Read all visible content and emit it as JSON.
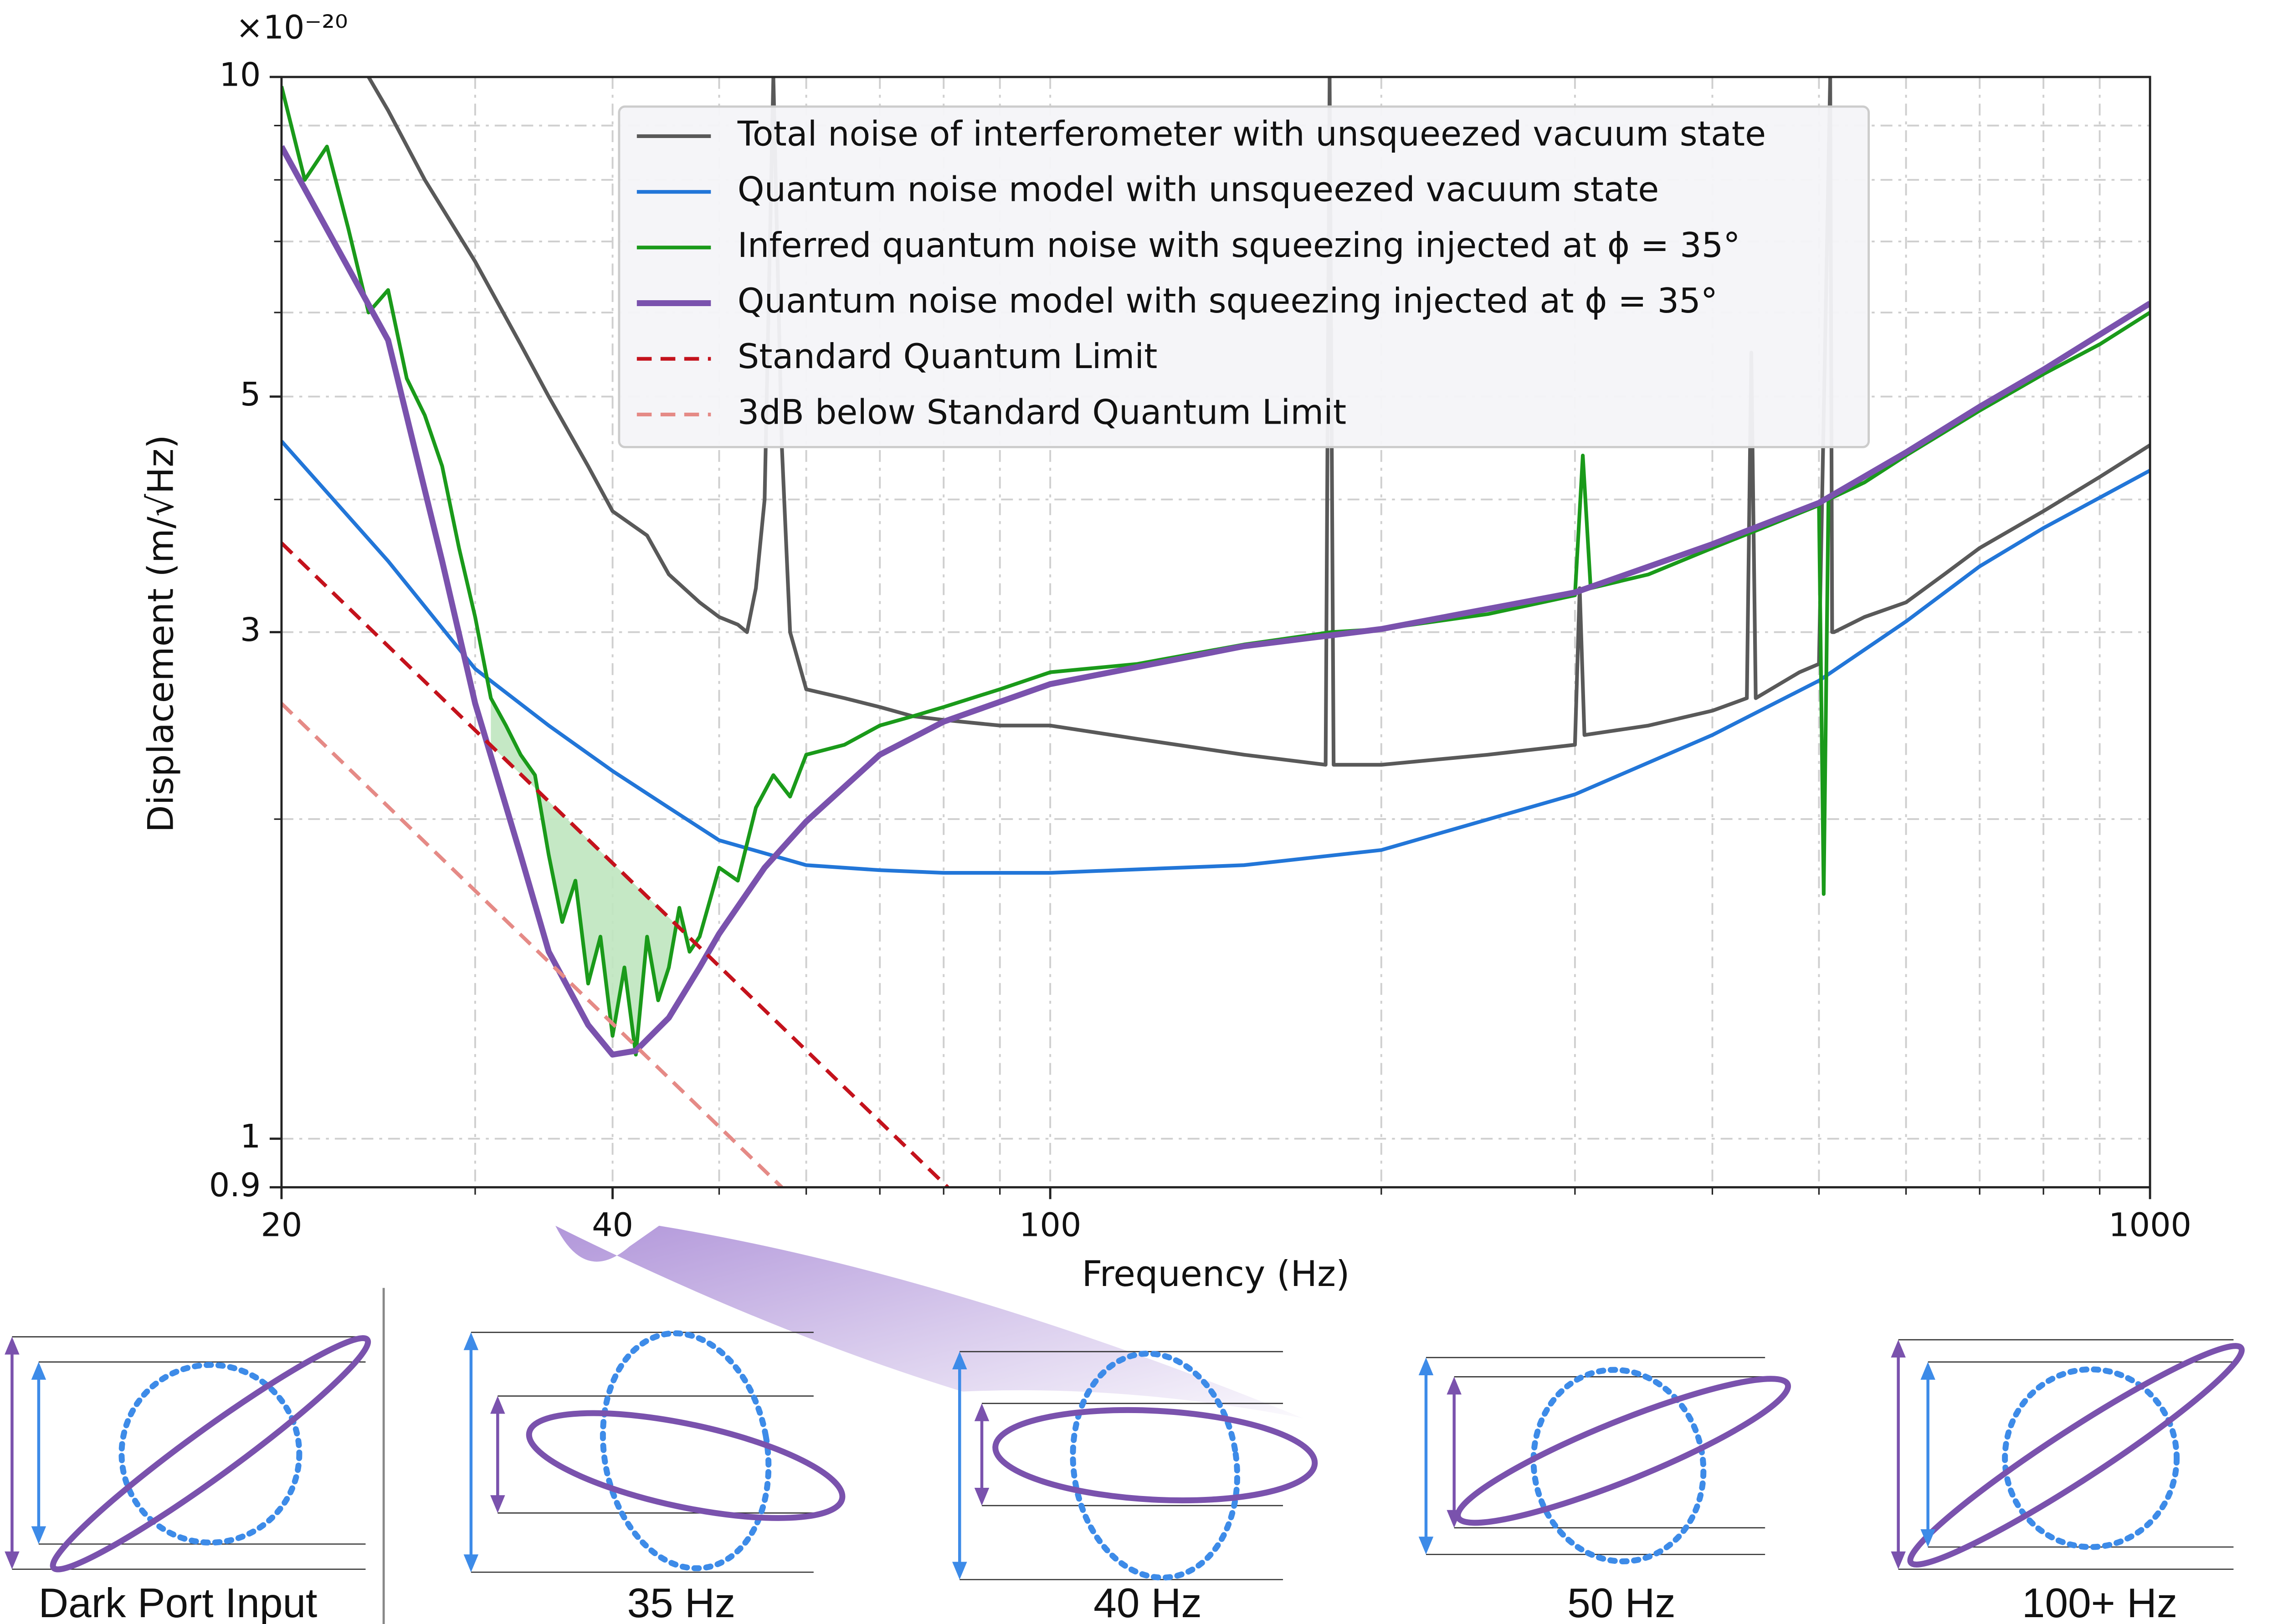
{
  "chart_data": {
    "type": "line",
    "x_label": "Frequency (Hz)",
    "y_label": "Displacement (m/√Hz)",
    "y_multiplier": "×10⁻²⁰",
    "xscale": "log",
    "yscale": "log",
    "xlim": [
      20,
      1000
    ],
    "ylim": [
      0.9,
      10
    ],
    "xticks": [
      20,
      40,
      100,
      1000
    ],
    "xminor": [
      30,
      50,
      60,
      70,
      80,
      90,
      200,
      300,
      400,
      500,
      600,
      700,
      800,
      900
    ],
    "yticks": [
      0.9,
      1,
      3,
      5,
      10
    ],
    "yminor": [
      2,
      4,
      6,
      7,
      8,
      9
    ],
    "grid": true,
    "legend": "upper center",
    "series": [
      {
        "name": "Total noise of interferometer with unsqueezed vacuum state",
        "color": "#595959",
        "linestyle": "solid",
        "linewidth": 2.5,
        "x": [
          24,
          25,
          27,
          30,
          33,
          35,
          38,
          40,
          43,
          45,
          48,
          50,
          52,
          53,
          54,
          55,
          56,
          57,
          58,
          60,
          65,
          70,
          75,
          80,
          90,
          100,
          120,
          150,
          178,
          179.5,
          181,
          200,
          250,
          300,
          303,
          306,
          350,
          400,
          430,
          434,
          438,
          480,
          500,
          512,
          514,
          516,
          550,
          600,
          650,
          700,
          800,
          900,
          1000
        ],
        "values": [
          10,
          9.3,
          8.0,
          6.7,
          5.6,
          5.0,
          4.3,
          3.9,
          3.7,
          3.4,
          3.2,
          3.1,
          3.05,
          3.0,
          3.3,
          4.0,
          10,
          4.5,
          3.0,
          2.65,
          2.6,
          2.55,
          2.5,
          2.48,
          2.45,
          2.45,
          2.38,
          2.3,
          2.25,
          10,
          2.25,
          2.25,
          2.3,
          2.35,
          3.3,
          2.4,
          2.45,
          2.53,
          2.6,
          5.5,
          2.6,
          2.75,
          2.8,
          10,
          3.0,
          3.0,
          3.1,
          3.2,
          3.4,
          3.6,
          3.9,
          4.2,
          4.5
        ]
      },
      {
        "name": "Quantum noise model with unsqueezed vacuum state",
        "color": "#2276d8",
        "linestyle": "solid",
        "linewidth": 2.5,
        "x": [
          20,
          25,
          30,
          35,
          40,
          45,
          50,
          60,
          70,
          80,
          100,
          150,
          200,
          300,
          400,
          500,
          600,
          700,
          800,
          1000
        ],
        "values": [
          4.54,
          3.5,
          2.77,
          2.45,
          2.22,
          2.05,
          1.91,
          1.81,
          1.79,
          1.78,
          1.78,
          1.81,
          1.87,
          2.11,
          2.4,
          2.7,
          3.07,
          3.46,
          3.76,
          4.26
        ]
      },
      {
        "name": "Inferred quantum noise with squeezing injected at ϕ = 35°",
        "color": "#1a9a1a",
        "linestyle": "solid",
        "linewidth": 2.5,
        "x": [
          20,
          21,
          22,
          23,
          24,
          25,
          26,
          27,
          28,
          29,
          30,
          31,
          32,
          33,
          34,
          35,
          36,
          37,
          38,
          39,
          40,
          41,
          42,
          43,
          44,
          45,
          46,
          47,
          48,
          50,
          52,
          54,
          56,
          58,
          60,
          65,
          70,
          75,
          80,
          90,
          100,
          120,
          150,
          180,
          200,
          250,
          300,
          305,
          310,
          350,
          400,
          450,
          500,
          505,
          510,
          550,
          600,
          700,
          800,
          900,
          1000
        ],
        "values": [
          9.8,
          8.0,
          8.6,
          7.2,
          6.0,
          6.3,
          5.2,
          4.8,
          4.3,
          3.6,
          3.1,
          2.6,
          2.45,
          2.3,
          2.2,
          1.85,
          1.6,
          1.75,
          1.4,
          1.55,
          1.25,
          1.45,
          1.2,
          1.55,
          1.35,
          1.45,
          1.65,
          1.5,
          1.55,
          1.8,
          1.75,
          2.05,
          2.2,
          2.1,
          2.3,
          2.35,
          2.45,
          2.5,
          2.55,
          2.65,
          2.75,
          2.8,
          2.92,
          3.0,
          3.02,
          3.12,
          3.25,
          4.4,
          3.3,
          3.4,
          3.6,
          3.78,
          3.95,
          1.7,
          4.0,
          4.15,
          4.4,
          4.85,
          5.25,
          5.6,
          6.0
        ]
      },
      {
        "name": "Quantum noise model with squeezing injected at ϕ = 35°",
        "color": "#7a52ad",
        "linestyle": "solid",
        "linewidth": 4,
        "x": [
          20,
          25,
          28,
          30,
          33,
          35,
          38,
          40,
          42,
          45,
          48,
          50,
          55,
          60,
          70,
          80,
          100,
          150,
          200,
          300,
          400,
          500,
          600,
          700,
          800,
          1000
        ],
        "values": [
          8.6,
          5.65,
          3.5,
          2.57,
          1.85,
          1.5,
          1.28,
          1.2,
          1.21,
          1.3,
          1.45,
          1.56,
          1.8,
          1.99,
          2.3,
          2.47,
          2.68,
          2.91,
          3.02,
          3.27,
          3.63,
          3.97,
          4.43,
          4.89,
          5.3,
          6.12
        ]
      },
      {
        "name": "Standard Quantum Limit",
        "color": "#c4121c",
        "linestyle": "dashed",
        "linewidth": 2.5,
        "x": [
          20,
          80.7
        ],
        "values": [
          3.64,
          0.9
        ]
      },
      {
        "name": "3dB below Standard Quantum Limit",
        "color": "#e58a86",
        "linestyle": "dashed",
        "linewidth": 2.5,
        "x": [
          20,
          57
        ],
        "values": [
          2.57,
          0.9
        ]
      }
    ],
    "fill_between": {
      "series": [
        2,
        4
      ],
      "xrange": [
        31,
        47
      ],
      "color": "#bfe6bf"
    }
  },
  "panels": [
    {
      "label": "Dark Port Input"
    },
    {
      "label": "35 Hz"
    },
    {
      "label": "40 Hz"
    },
    {
      "label": "50 Hz"
    },
    {
      "label": "100+ Hz"
    }
  ]
}
